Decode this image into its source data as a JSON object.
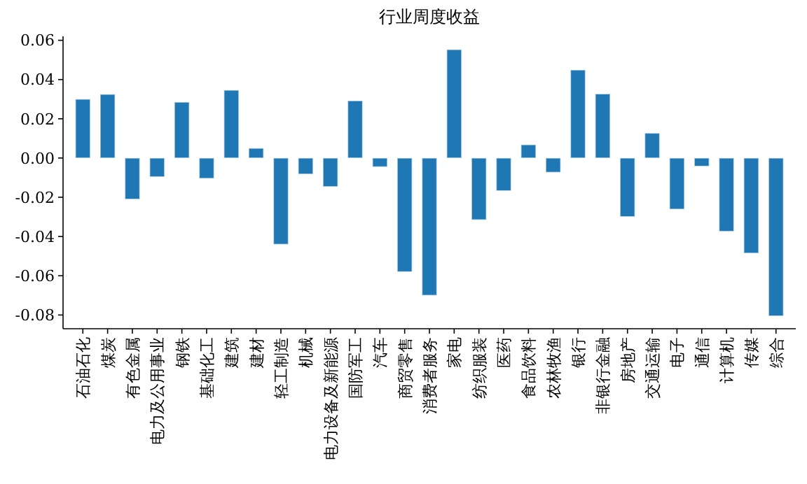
{
  "chart_data": {
    "type": "bar",
    "title": "行业周度收益",
    "categories": [
      "石油石化",
      "煤炭",
      "有色金属",
      "电力及公用事业",
      "钢铁",
      "基础化工",
      "建筑",
      "建材",
      "轻工制造",
      "机械",
      "电力设备及新能源",
      "国防军工",
      "汽车",
      "商贸零售",
      "消费者服务",
      "家电",
      "纺织服装",
      "医药",
      "食品饮料",
      "农林牧渔",
      "银行",
      "非银行金融",
      "房地产",
      "交通运输",
      "电子",
      "通信",
      "计算机",
      "传媒",
      "综合"
    ],
    "values": [
      0.03,
      0.0325,
      -0.021,
      -0.0096,
      0.0285,
      -0.0104,
      0.0346,
      0.005,
      -0.044,
      -0.0082,
      -0.0146,
      0.0292,
      -0.0045,
      -0.058,
      -0.07,
      0.0553,
      -0.0315,
      -0.0167,
      0.0068,
      -0.0073,
      0.0449,
      0.0327,
      -0.0299,
      0.0127,
      -0.0261,
      -0.0042,
      -0.0374,
      -0.0485,
      -0.0805
    ],
    "color": "#1f77b4",
    "ylim": [
      -0.087,
      0.062
    ],
    "yticks": [
      {
        "value": -0.08,
        "label": "-0.08"
      },
      {
        "value": -0.06,
        "label": "-0.06"
      },
      {
        "value": -0.04,
        "label": "-0.04"
      },
      {
        "value": -0.02,
        "label": "-0.02"
      },
      {
        "value": 0,
        "label": "0.00"
      },
      {
        "value": 0.02,
        "label": "0.02"
      },
      {
        "value": 0.04,
        "label": "0.04"
      },
      {
        "value": 0.06,
        "label": "0.06"
      }
    ]
  }
}
